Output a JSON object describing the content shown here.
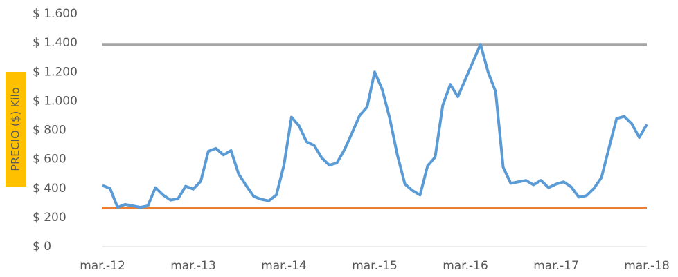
{
  "chart_data": {
    "type": "line",
    "y_label": "PRECIO ($) Kilo",
    "categories": [
      "mar.-12",
      null,
      null,
      null,
      null,
      null,
      null,
      null,
      null,
      null,
      null,
      null,
      "mar.-13",
      null,
      null,
      null,
      null,
      null,
      null,
      null,
      null,
      null,
      null,
      null,
      "mar.-14",
      null,
      null,
      null,
      null,
      null,
      null,
      null,
      null,
      null,
      null,
      null,
      "mar.-15",
      null,
      null,
      null,
      null,
      null,
      null,
      null,
      null,
      null,
      null,
      null,
      "mar.-16",
      null,
      null,
      null,
      null,
      null,
      null,
      null,
      null,
      null,
      null,
      null,
      "mar.-17",
      null,
      null,
      null,
      null,
      null,
      null,
      null,
      null,
      null,
      null,
      null,
      "mar.-18"
    ],
    "series": [
      {
        "color": "#5b9bd5",
        "values": [
          420,
          400,
          270,
          290,
          280,
          270,
          280,
          405,
          355,
          320,
          330,
          415,
          395,
          450,
          655,
          675,
          630,
          660,
          500,
          420,
          345,
          325,
          315,
          355,
          560,
          890,
          830,
          720,
          695,
          610,
          560,
          575,
          665,
          780,
          900,
          960,
          1200,
          1080,
          880,
          630,
          430,
          385,
          355,
          555,
          615,
          970,
          1115,
          1030,
          1150,
          1270,
          1390,
          1200,
          1065,
          545,
          435,
          445,
          455,
          425,
          455,
          405,
          430,
          445,
          410,
          340,
          350,
          400,
          475,
          680,
          880,
          895,
          845,
          750,
          840
        ]
      }
    ],
    "reference_lines": [
      {
        "value": 1390,
        "color": "#a5a5a5"
      },
      {
        "value": 266,
        "color": "#ed7d31"
      }
    ],
    "ylim": [
      0,
      1600
    ],
    "yticks": [
      {
        "value": 0,
        "label": "$ 0"
      },
      {
        "value": 200,
        "label": "$ 200"
      },
      {
        "value": 400,
        "label": "$ 400"
      },
      {
        "value": 600,
        "label": "$ 600"
      },
      {
        "value": 800,
        "label": "$ 800"
      },
      {
        "value": 1000,
        "label": "$ 1.000"
      },
      {
        "value": 1200,
        "label": "$ 1.200"
      },
      {
        "value": 1400,
        "label": "$ 1.400"
      },
      {
        "value": 1600,
        "label": "$ 1.600"
      }
    ],
    "grid": false
  }
}
